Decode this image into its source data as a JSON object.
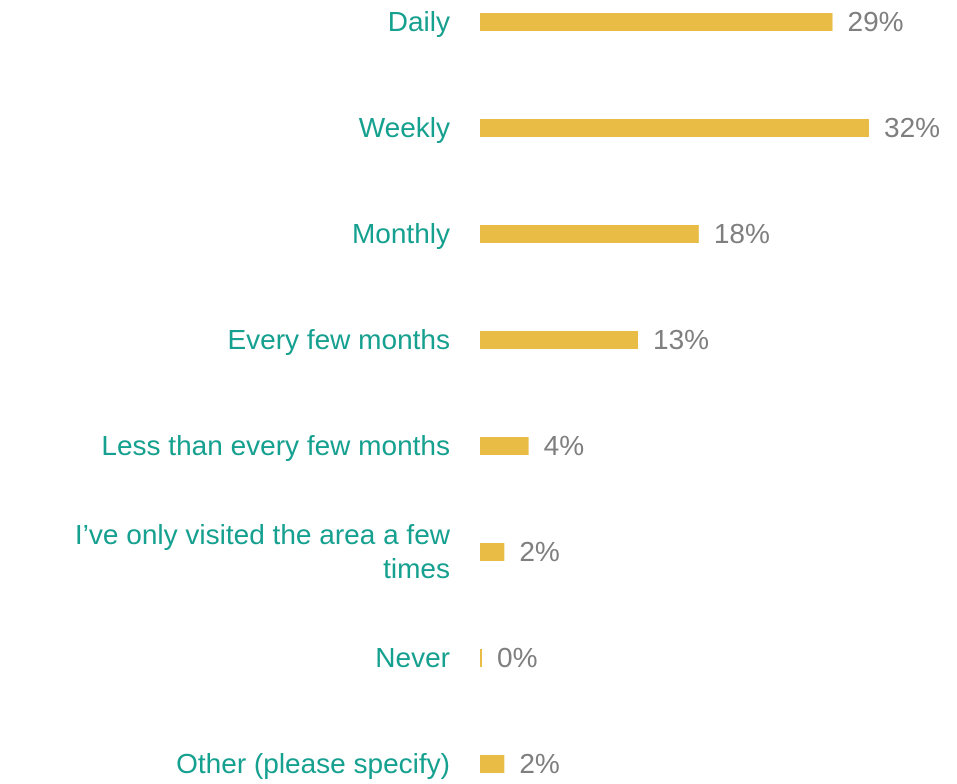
{
  "chart_data": {
    "type": "bar",
    "orientation": "horizontal",
    "categories": [
      "Daily",
      "Weekly",
      "Monthly",
      "Every few months",
      "Less than every few months",
      "I’ve only visited the area a few times",
      "Never",
      "Other (please specify)"
    ],
    "values": [
      29,
      32,
      18,
      13,
      4,
      2,
      0,
      2
    ],
    "value_labels": [
      "29%",
      "32%",
      "18%",
      "13%",
      "4%",
      "2%",
      "0%",
      "2%"
    ],
    "color": "#e8bc45",
    "xlim": [
      0,
      32
    ]
  }
}
